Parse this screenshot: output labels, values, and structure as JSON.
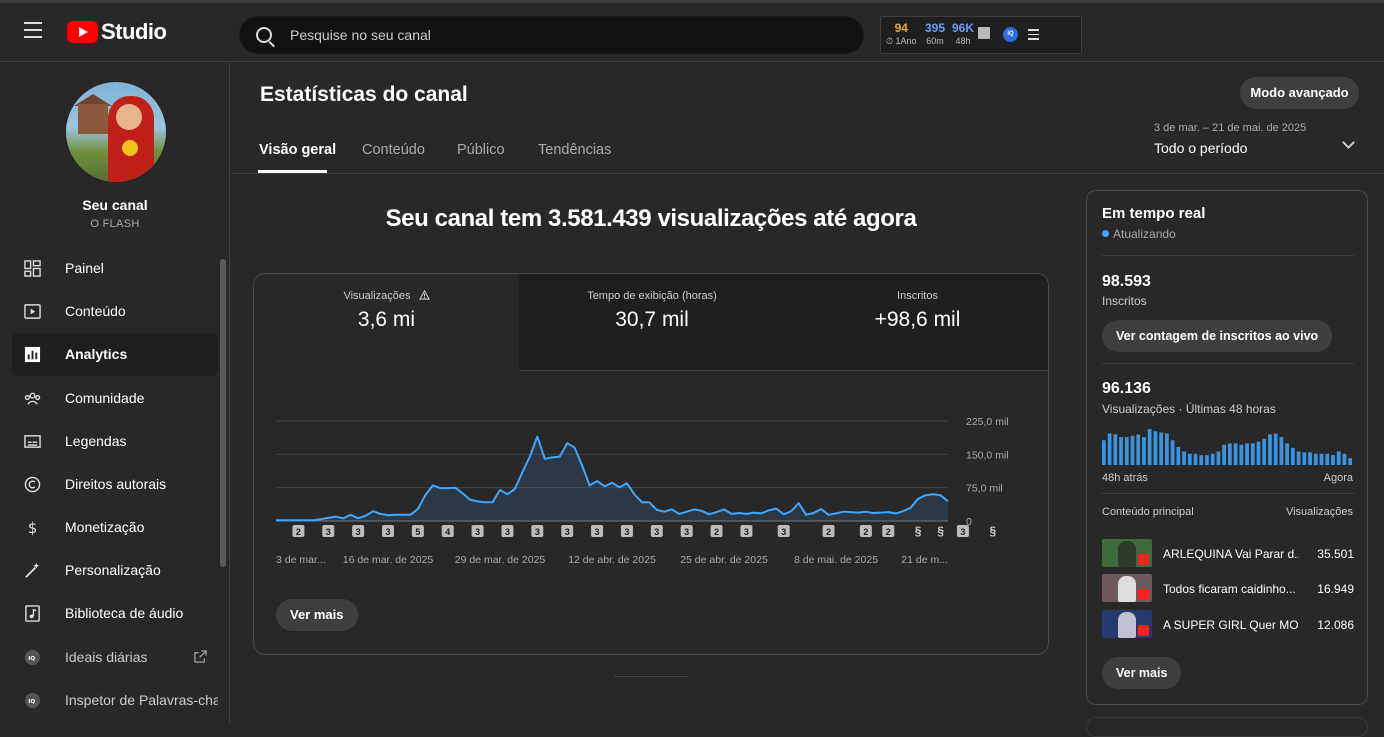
{
  "topbar": {
    "brand": "Studio",
    "search_placeholder": "Pesquise no seu canal",
    "extension": {
      "stat1_value": "94",
      "stat1_label": "⏱ 1Ano",
      "stat2_value": "395",
      "stat2_label": "60m",
      "stat3_value": "96K",
      "stat3_label": "48h",
      "iq": "IQ"
    }
  },
  "sidebar": {
    "channel_name": "Seu canal",
    "channel_handle": "O FLASH",
    "items": [
      {
        "label": "Painel",
        "icon": "dashboard-icon"
      },
      {
        "label": "Conteúdo",
        "icon": "content-icon"
      },
      {
        "label": "Analytics",
        "icon": "analytics-icon",
        "active": true
      },
      {
        "label": "Comunidade",
        "icon": "community-icon"
      },
      {
        "label": "Legendas",
        "icon": "subtitles-icon"
      },
      {
        "label": "Direitos autorais",
        "icon": "copyright-icon"
      },
      {
        "label": "Monetização",
        "icon": "dollar-icon"
      },
      {
        "label": "Personalização",
        "icon": "magic-wand-icon"
      },
      {
        "label": "Biblioteca de áudio",
        "icon": "audio-library-icon"
      },
      {
        "label": "Ideais diárias",
        "icon": "iq-icon"
      },
      {
        "label": "Inspetor de Palavras-chav",
        "icon": "iq-icon"
      }
    ]
  },
  "main": {
    "title": "Estatísticas do canal",
    "advanced_button": "Modo avançado",
    "tabs": [
      "Visão geral",
      "Conteúdo",
      "Público",
      "Tendências"
    ],
    "period_dates": "3 de mar. – 21 de mai. de 2025",
    "period_label": "Todo o período",
    "headline": "Seu canal tem 3.581.439 visualizações até agora",
    "metrics": [
      {
        "label": "Visualizações",
        "value": "3,6 mi",
        "warning": true
      },
      {
        "label": "Tempo de exibição (horas)",
        "value": "30,7 mil"
      },
      {
        "label": "Inscritos",
        "value": "+98,6 mil"
      }
    ],
    "see_more": "Ver mais"
  },
  "chart_data": {
    "type": "area",
    "color": "#3ea6ff",
    "ylim": [
      0,
      225000
    ],
    "y_ticks": [
      "225,0 mil",
      "150,0 mil",
      "75,0 mil",
      "0"
    ],
    "x_tick_labels": [
      "3 de mar...",
      "16 de mar. de 2025",
      "29 de mar. de 2025",
      "12 de abr. de 2025",
      "25 de abr. de 2025",
      "8 de mai. de 2025",
      "21 de m..."
    ],
    "values": [
      1500,
      1500,
      1500,
      1500,
      1500,
      1500,
      4000,
      7000,
      10000,
      6000,
      14000,
      6000,
      12000,
      22000,
      16000,
      13000,
      14000,
      14000,
      14000,
      27000,
      58000,
      80000,
      74000,
      74000,
      75000,
      62000,
      48000,
      44000,
      42000,
      42000,
      70000,
      60000,
      72000,
      110000,
      145000,
      190000,
      140000,
      143000,
      145000,
      175000,
      165000,
      125000,
      80000,
      90000,
      78000,
      86000,
      76000,
      85000,
      60000,
      42000,
      42000,
      25000,
      21000,
      26000,
      16000,
      21000,
      26000,
      23000,
      15000,
      20000,
      26000,
      16000,
      18000,
      16000,
      19000,
      17000,
      24000,
      28000,
      15000,
      22000,
      40000,
      14000,
      18000,
      27000,
      14000,
      17000,
      21000,
      20000,
      19000,
      21000,
      18000,
      19000,
      20000,
      17000,
      22000,
      30000,
      50000,
      58000,
      60000,
      58000,
      44000
    ],
    "markers": [
      {
        "pos": 3,
        "label": "2"
      },
      {
        "pos": 7,
        "label": "3"
      },
      {
        "pos": 11,
        "label": "3"
      },
      {
        "pos": 15,
        "label": "3"
      },
      {
        "pos": 19,
        "label": "5"
      },
      {
        "pos": 23,
        "label": "4"
      },
      {
        "pos": 27,
        "label": "3"
      },
      {
        "pos": 31,
        "label": "3"
      },
      {
        "pos": 35,
        "label": "3"
      },
      {
        "pos": 39,
        "label": "3"
      },
      {
        "pos": 43,
        "label": "3"
      },
      {
        "pos": 47,
        "label": "3"
      },
      {
        "pos": 51,
        "label": "3"
      },
      {
        "pos": 55,
        "label": "3"
      },
      {
        "pos": 59,
        "label": "2"
      },
      {
        "pos": 63,
        "label": "3"
      },
      {
        "pos": 68,
        "label": "3"
      },
      {
        "pos": 74,
        "label": "2"
      },
      {
        "pos": 79,
        "label": "2"
      },
      {
        "pos": 82,
        "label": "2"
      },
      {
        "pos": 86,
        "label": "shorts"
      },
      {
        "pos": 89,
        "label": "shorts"
      },
      {
        "pos": 92,
        "label": "3"
      },
      {
        "pos": 96,
        "label": "shorts"
      }
    ]
  },
  "realtime": {
    "title": "Em tempo real",
    "status": "Atualizando",
    "subscribers_value": "98.593",
    "subscribers_label": "Inscritos",
    "live_count_button": "Ver contagem de inscritos ao vivo",
    "views_value": "96.136",
    "views_label": "Visualizações · Últimas 48 horas",
    "bars_start_label": "48h atrás",
    "bars_end_label": "Agora",
    "bars": [
      55,
      70,
      68,
      62,
      62,
      65,
      68,
      62,
      80,
      75,
      72,
      70,
      55,
      40,
      30,
      25,
      25,
      22,
      22,
      25,
      30,
      45,
      48,
      48,
      45,
      48,
      48,
      52,
      58,
      68,
      70,
      62,
      48,
      38,
      30,
      28,
      28,
      25,
      25,
      25,
      22,
      30,
      25,
      15
    ],
    "top_content_label": "Conteúdo principal",
    "views_col_label": "Visualizações",
    "videos": [
      {
        "title": "ARLEQUINA Vai Parar d...",
        "views": "35.501",
        "bg": "#3d6b3a",
        "fig": "#2d3a2a"
      },
      {
        "title": "Todos ficaram caidinho...",
        "views": "16.949",
        "bg": "#6e5a5c",
        "fig": "#ddd"
      },
      {
        "title": "A SUPER GIRL Quer MO...",
        "views": "12.086",
        "bg": "#243a6e",
        "fig": "#c0c0d0"
      }
    ],
    "see_more": "Ver mais"
  }
}
